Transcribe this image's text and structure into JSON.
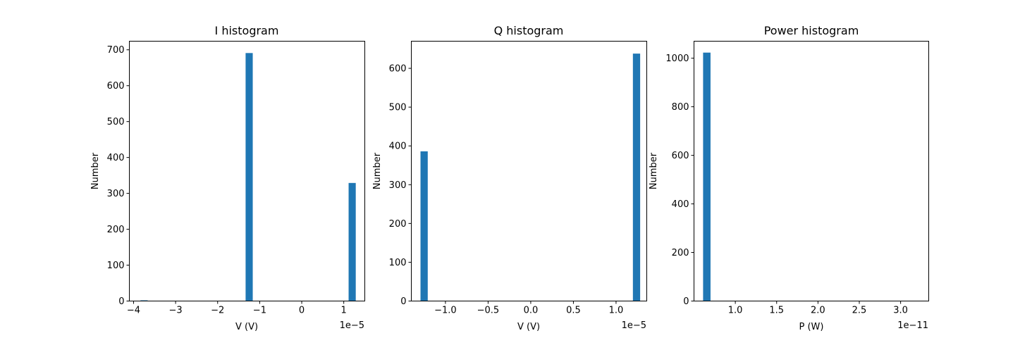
{
  "chart_data": [
    {
      "type": "bar",
      "title": "I histogram",
      "xlabel": "V (V)",
      "ylabel": "Number",
      "x_offset_label": "1e−5",
      "xlim": [
        -4.1,
        1.5
      ],
      "ylim": [
        0,
        724
      ],
      "bar_width": 0.17,
      "bars": [
        {
          "x": -3.75,
          "value": 2
        },
        {
          "x": -1.25,
          "value": 691
        },
        {
          "x": 1.2,
          "value": 329
        }
      ],
      "xticks": [
        {
          "value": -4,
          "label": "−4"
        },
        {
          "value": -3,
          "label": "−3"
        },
        {
          "value": -2,
          "label": "−2"
        },
        {
          "value": -1,
          "label": "−1"
        },
        {
          "value": 0,
          "label": "0"
        },
        {
          "value": 1,
          "label": "1"
        }
      ],
      "yticks": [
        {
          "value": 0,
          "label": "0"
        },
        {
          "value": 100,
          "label": "100"
        },
        {
          "value": 200,
          "label": "200"
        },
        {
          "value": 300,
          "label": "300"
        },
        {
          "value": 400,
          "label": "400"
        },
        {
          "value": 500,
          "label": "500"
        },
        {
          "value": 600,
          "label": "600"
        },
        {
          "value": 700,
          "label": "700"
        }
      ],
      "color": "#1f77b4"
    },
    {
      "type": "bar",
      "title": "Q histogram",
      "xlabel": "V (V)",
      "ylabel": "Number",
      "x_offset_label": "1e−5",
      "xlim": [
        -1.4,
        1.36
      ],
      "ylim": [
        0,
        670
      ],
      "bar_width": 0.085,
      "bars": [
        {
          "x": -1.25,
          "value": 386
        },
        {
          "x": 1.24,
          "value": 638
        }
      ],
      "xticks": [
        {
          "value": -1.0,
          "label": "−1.0"
        },
        {
          "value": -0.5,
          "label": "−0.5"
        },
        {
          "value": 0.0,
          "label": "0.0"
        },
        {
          "value": 0.5,
          "label": "0.5"
        },
        {
          "value": 1.0,
          "label": "1.0"
        }
      ],
      "yticks": [
        {
          "value": 0,
          "label": "0"
        },
        {
          "value": 100,
          "label": "100"
        },
        {
          "value": 200,
          "label": "200"
        },
        {
          "value": 300,
          "label": "300"
        },
        {
          "value": 400,
          "label": "400"
        },
        {
          "value": 500,
          "label": "500"
        },
        {
          "value": 600,
          "label": "600"
        }
      ],
      "color": "#1f77b4"
    },
    {
      "type": "bar",
      "title": "Power histogram",
      "xlabel": "P (W)",
      "ylabel": "Number",
      "x_offset_label": "1e−11",
      "xlim": [
        0.5,
        3.34
      ],
      "ylim": [
        0,
        1070
      ],
      "bar_width": 0.09,
      "bars": [
        {
          "x": 0.655,
          "value": 1023
        }
      ],
      "xticks": [
        {
          "value": 1.0,
          "label": "1.0"
        },
        {
          "value": 1.5,
          "label": "1.5"
        },
        {
          "value": 2.0,
          "label": "2.0"
        },
        {
          "value": 2.5,
          "label": "2.5"
        },
        {
          "value": 3.0,
          "label": "3.0"
        }
      ],
      "yticks": [
        {
          "value": 0,
          "label": "0"
        },
        {
          "value": 200,
          "label": "200"
        },
        {
          "value": 400,
          "label": "400"
        },
        {
          "value": 600,
          "label": "600"
        },
        {
          "value": 800,
          "label": "800"
        },
        {
          "value": 1000,
          "label": "1000"
        }
      ],
      "color": "#1f77b4"
    }
  ]
}
